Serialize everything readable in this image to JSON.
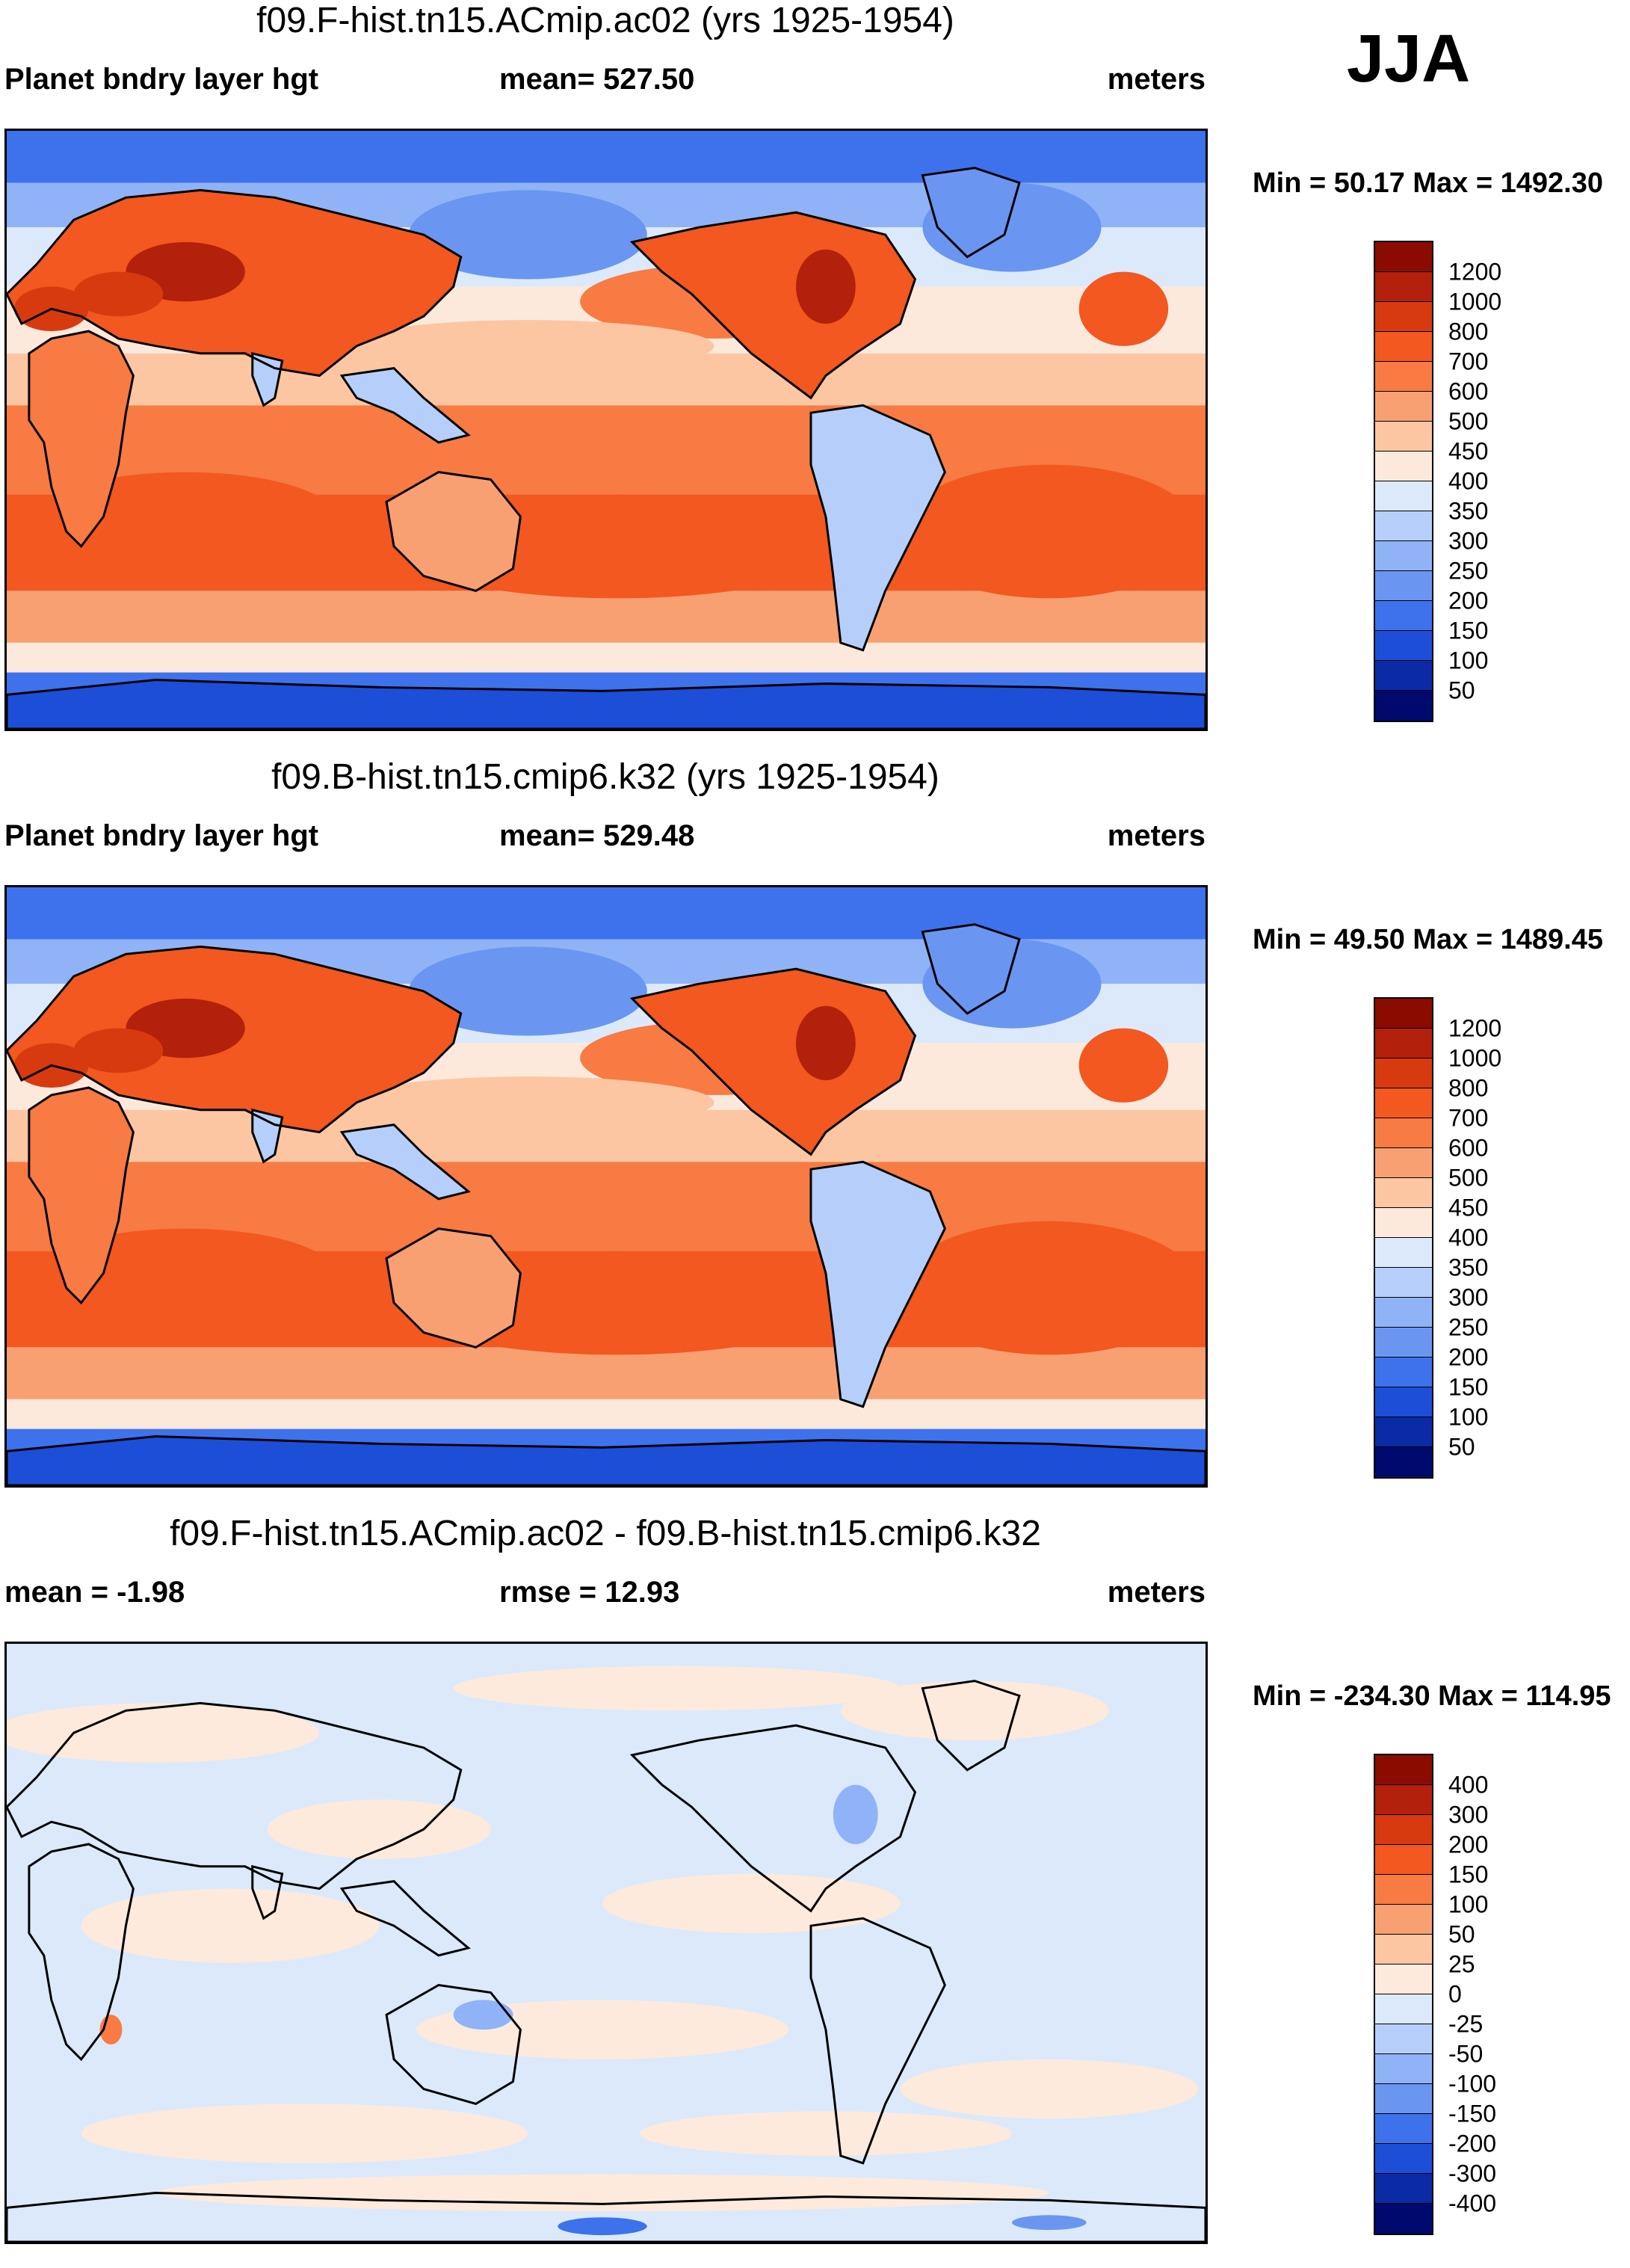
{
  "season": "JJA",
  "panels": [
    {
      "title": "f09.F-hist.tn15.ACmip.ac02 (yrs 1925-1954)",
      "left_label": "Planet bndry layer hgt",
      "mid_label": "mean= 527.50",
      "units": "meters",
      "minmax": "Min =  50.17 Max = 1492.30",
      "legend_labels": [
        "1200",
        "1000",
        "800",
        "700",
        "600",
        "500",
        "450",
        "400",
        "350",
        "300",
        "250",
        "200",
        "150",
        "100",
        "50"
      ],
      "legend_colors": [
        "#8b0b00",
        "#b3200b",
        "#d83a0f",
        "#f2581f",
        "#f77b43",
        "#f9a073",
        "#fcc6a3",
        "#fde9dc",
        "#dbe9fb",
        "#b6cffa",
        "#8fb3f6",
        "#6a96f1",
        "#3e72ec",
        "#1d4ed8",
        "#0b2aa6",
        "#000a6e"
      ],
      "map_kind": "abs"
    },
    {
      "title": "f09.B-hist.tn15.cmip6.k32 (yrs 1925-1954)",
      "left_label": "Planet bndry layer hgt",
      "mid_label": "mean= 529.48",
      "units": "meters",
      "minmax": "Min =  49.50 Max = 1489.45",
      "legend_labels": [
        "1200",
        "1000",
        "800",
        "700",
        "600",
        "500",
        "450",
        "400",
        "350",
        "300",
        "250",
        "200",
        "150",
        "100",
        "50"
      ],
      "legend_colors": [
        "#8b0b00",
        "#b3200b",
        "#d83a0f",
        "#f2581f",
        "#f77b43",
        "#f9a073",
        "#fcc6a3",
        "#fde9dc",
        "#dbe9fb",
        "#b6cffa",
        "#8fb3f6",
        "#6a96f1",
        "#3e72ec",
        "#1d4ed8",
        "#0b2aa6",
        "#000a6e"
      ],
      "map_kind": "abs"
    },
    {
      "title": "f09.F-hist.tn15.ACmip.ac02 - f09.B-hist.tn15.cmip6.k32",
      "left_label": "mean =  -1.98",
      "mid_label": "rmse =  12.93",
      "units": "meters",
      "minmax": "Min = -234.30 Max = 114.95",
      "legend_labels": [
        "400",
        "300",
        "200",
        "150",
        "100",
        "50",
        "25",
        "0",
        "-25",
        "-50",
        "-100",
        "-150",
        "-200",
        "-300",
        "-400"
      ],
      "legend_colors": [
        "#8b0b00",
        "#b3200b",
        "#d83a0f",
        "#f2581f",
        "#f77b43",
        "#f9a073",
        "#fcc6a3",
        "#fdeadd",
        "#dbe9fb",
        "#b6cffa",
        "#8fb3f6",
        "#6a96f1",
        "#3e72ec",
        "#1d4ed8",
        "#0b2aa6",
        "#000a6e"
      ],
      "map_kind": "diff"
    }
  ],
  "chart_data": [
    {
      "type": "heatmap",
      "title": "f09.F-hist.tn15.ACmip.ac02 (yrs 1925-1954)",
      "variable": "Planet bndry layer hgt",
      "units": "meters",
      "season": "JJA",
      "mean": 527.5,
      "min": 50.17,
      "max": 1492.3,
      "contour_levels": [
        50,
        100,
        150,
        200,
        250,
        300,
        350,
        400,
        450,
        500,
        600,
        700,
        800,
        1000,
        1200
      ]
    },
    {
      "type": "heatmap",
      "title": "f09.B-hist.tn15.cmip6.k32 (yrs 1925-1954)",
      "variable": "Planet bndry layer hgt",
      "units": "meters",
      "season": "JJA",
      "mean": 529.48,
      "min": 49.5,
      "max": 1489.45,
      "contour_levels": [
        50,
        100,
        150,
        200,
        250,
        300,
        350,
        400,
        450,
        500,
        600,
        700,
        800,
        1000,
        1200
      ]
    },
    {
      "type": "heatmap",
      "title": "f09.F-hist.tn15.ACmip.ac02 - f09.B-hist.tn15.cmip6.k32",
      "units": "meters",
      "season": "JJA",
      "mean": -1.98,
      "rmse": 12.93,
      "min": -234.3,
      "max": 114.95,
      "contour_levels": [
        -400,
        -300,
        -200,
        -150,
        -100,
        -50,
        -25,
        0,
        25,
        50,
        100,
        150,
        200,
        300,
        400
      ]
    }
  ]
}
